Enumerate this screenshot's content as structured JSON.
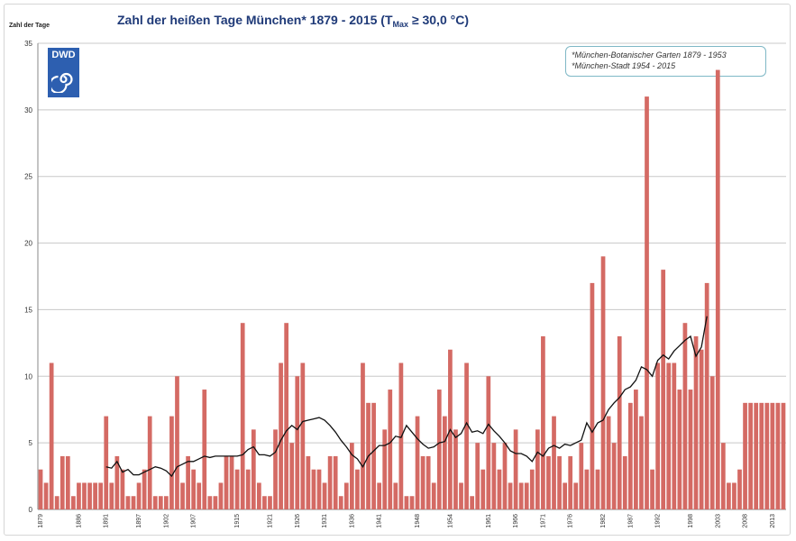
{
  "header": {
    "title_main": "Zahl der heißen Tage München*  1879 - 2015 (T",
    "title_sub": "Max",
    "title_tail": "  ≥ 30,0 °C)",
    "ylabel": "Zahl der Tage"
  },
  "logo": {
    "text": "DWD",
    "icon": "dwd-swirl-icon"
  },
  "legend": {
    "line1": "*München-Botanischer Garten 1879 - 1953",
    "line2": "*München-Stadt 1954 - 2015"
  },
  "colors": {
    "bar": "#d46a64",
    "line": "#111111",
    "title": "#1f3a78"
  },
  "chart_data": {
    "type": "bar",
    "title": "Zahl der heißen Tage München*  1879 - 2015 (TMax  ≥ 30,0 °C)",
    "ylabel": "Zahl der Tage",
    "xlabel": "",
    "ylim": [
      0,
      35
    ],
    "yticks": [
      0,
      5,
      10,
      15,
      20,
      25,
      30,
      35
    ],
    "xtick_labels": [
      "1879",
      "1886",
      "1891",
      "1897",
      "1902",
      "1907",
      "1915",
      "1921",
      "1926",
      "1931",
      "1936",
      "1941",
      "1948",
      "1954",
      "1961",
      "1966",
      "1971",
      "1976",
      "1982",
      "1987",
      "1992",
      "1998",
      "2003",
      "2008",
      "2013"
    ],
    "grid": "horizontal",
    "x_start": 1879,
    "x_end": 2015,
    "values": [
      3,
      2,
      11,
      1,
      4,
      4,
      1,
      2,
      2,
      2,
      2,
      2,
      7,
      2,
      4,
      3,
      1,
      1,
      2,
      3,
      7,
      1,
      1,
      1,
      7,
      10,
      2,
      4,
      3,
      2,
      9,
      1,
      1,
      2,
      4,
      4,
      3,
      14,
      3,
      6,
      2,
      1,
      1,
      6,
      11,
      14,
      5,
      10,
      11,
      4,
      3,
      3,
      2,
      4,
      4,
      1,
      2,
      5,
      3,
      11,
      8,
      8,
      2,
      6,
      9,
      2,
      11,
      1,
      1,
      7,
      4,
      4,
      2,
      9,
      7,
      12,
      6,
      2,
      11,
      1,
      5,
      3,
      10,
      5,
      3,
      5,
      2,
      6,
      2,
      2,
      3,
      6,
      13,
      4,
      7,
      4,
      2,
      4,
      2,
      5,
      3,
      17,
      3,
      19,
      7,
      5,
      13,
      4,
      8,
      9,
      7,
      31,
      3,
      11,
      18,
      11,
      11,
      9,
      14,
      9,
      13,
      12,
      17,
      10,
      33,
      5,
      2,
      2,
      3,
      8,
      8,
      8,
      8,
      8,
      8,
      8,
      8
    ],
    "series": [
      {
        "type": "line",
        "values": [
          null,
          null,
          null,
          null,
          null,
          null,
          null,
          null,
          null,
          null,
          null,
          null,
          3.2,
          3.1,
          3.6,
          2.8,
          3.0,
          2.6,
          2.6,
          2.8,
          3.0,
          3.2,
          3.1,
          2.9,
          2.5,
          3.2,
          3.4,
          3.6,
          3.6,
          3.8,
          4.0,
          3.9,
          4.0,
          4.0,
          4.0,
          4.0,
          4.0,
          4.1,
          4.5,
          4.7,
          4.1,
          4.1,
          4.0,
          4.3,
          5.2,
          5.9,
          6.3,
          6.0,
          6.6,
          6.7,
          6.8,
          6.9,
          6.7,
          6.3,
          5.8,
          5.2,
          4.7,
          4.1,
          3.8,
          3.2,
          4.0,
          4.4,
          4.8,
          4.8,
          5.0,
          5.5,
          5.4,
          6.3,
          5.8,
          5.3,
          4.9,
          4.6,
          4.7,
          5.0,
          5.1,
          6.0,
          5.4,
          5.7,
          6.5,
          5.8,
          5.9,
          5.7,
          6.4,
          5.9,
          5.5,
          5.0,
          4.4,
          4.2,
          4.2,
          4.0,
          3.6,
          4.3,
          4.0,
          4.6,
          4.8,
          4.6,
          4.9,
          4.8,
          5.0,
          5.2,
          6.5,
          5.8,
          6.5,
          6.7,
          7.5,
          8.0,
          8.4,
          9.0,
          9.2,
          9.7,
          10.7,
          10.5,
          10.0,
          11.2,
          11.6,
          11.3,
          11.9,
          12.3,
          12.7,
          13.0,
          11.5,
          12.2,
          14.5
        ]
      }
    ]
  }
}
